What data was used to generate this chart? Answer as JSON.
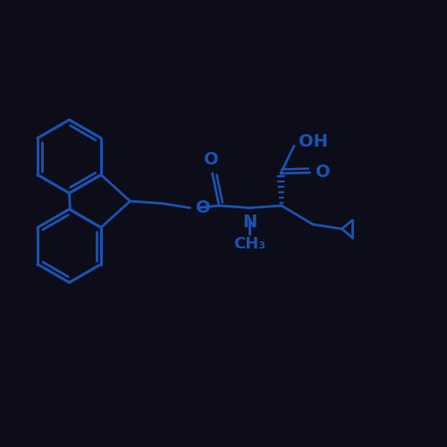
{
  "bg_color": "#0d0d1a",
  "line_color": "#1a52b0",
  "line_width": 2.0,
  "font_size": 14,
  "figsize": [
    5.0,
    5.0
  ],
  "dpi": 100,
  "xlim": [
    0,
    10
  ],
  "ylim": [
    0,
    10
  ]
}
